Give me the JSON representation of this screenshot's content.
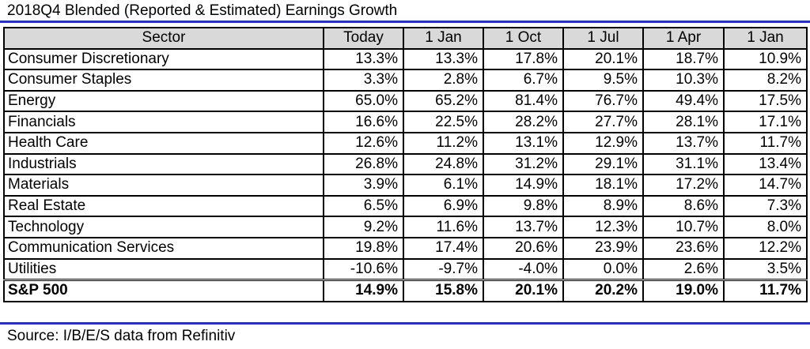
{
  "title": "2018Q4 Blended (Reported & Estimated) Earnings Growth",
  "source": "Source: I/B/E/S data from Refinitiv",
  "colors": {
    "rule": "#2b2fc2",
    "header_bg": "#d9d9d9"
  },
  "chart_data": {
    "type": "table",
    "title": "2018Q4 Blended (Reported & Estimated) Earnings Growth",
    "columns": [
      "Sector",
      "Today",
      "1 Jan",
      "1 Oct",
      "1 Jul",
      "1 Apr",
      "1 Jan"
    ],
    "rows": [
      [
        "Consumer Discretionary",
        "13.3%",
        "13.3%",
        "17.8%",
        "20.1%",
        "18.7%",
        "10.9%"
      ],
      [
        "Consumer Staples",
        "3.3%",
        "2.8%",
        "6.7%",
        "9.5%",
        "10.3%",
        "8.2%"
      ],
      [
        "Energy",
        "65.0%",
        "65.2%",
        "81.4%",
        "76.7%",
        "49.4%",
        "17.5%"
      ],
      [
        "Financials",
        "16.6%",
        "22.5%",
        "28.2%",
        "27.7%",
        "28.1%",
        "17.1%"
      ],
      [
        "Health Care",
        "12.6%",
        "11.2%",
        "13.1%",
        "12.9%",
        "13.7%",
        "11.7%"
      ],
      [
        "Industrials",
        "26.8%",
        "24.8%",
        "31.2%",
        "29.1%",
        "31.1%",
        "13.4%"
      ],
      [
        "Materials",
        "3.9%",
        "6.1%",
        "14.9%",
        "18.1%",
        "17.2%",
        "14.7%"
      ],
      [
        "Real Estate",
        "6.5%",
        "6.9%",
        "9.8%",
        "8.9%",
        "8.6%",
        "7.3%"
      ],
      [
        "Technology",
        "9.2%",
        "11.6%",
        "13.7%",
        "12.3%",
        "10.7%",
        "8.0%"
      ],
      [
        "Communication Services",
        "19.8%",
        "17.4%",
        "20.6%",
        "23.9%",
        "23.6%",
        "12.2%"
      ],
      [
        "Utilities",
        "-10.6%",
        "-9.7%",
        "-4.0%",
        "0.0%",
        "2.6%",
        "3.5%"
      ]
    ],
    "total_row": [
      "S&P 500",
      "14.9%",
      "15.8%",
      "20.1%",
      "20.2%",
      "19.0%",
      "11.7%"
    ]
  }
}
